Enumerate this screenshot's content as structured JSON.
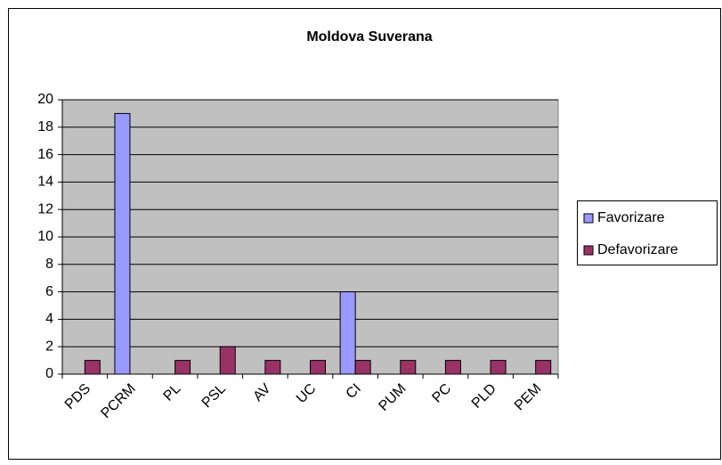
{
  "chart_data": {
    "type": "bar",
    "title": "Moldova Suverana",
    "categories": [
      "PDS",
      "PCRM",
      "PL",
      "PSL",
      "AV",
      "UC",
      "CI",
      "PUM",
      "PC",
      "PLD",
      "PEM"
    ],
    "series": [
      {
        "name": "Favorizare",
        "color": "#9999ff",
        "values": [
          0,
          19,
          0,
          0,
          0,
          0,
          6,
          0,
          0,
          0,
          0
        ]
      },
      {
        "name": "Defavorizare",
        "color": "#993366",
        "values": [
          1,
          0,
          1,
          2,
          1,
          1,
          1,
          1,
          1,
          1,
          1
        ]
      }
    ],
    "ylim": [
      0,
      20
    ],
    "yticks": [
      0,
      2,
      4,
      6,
      8,
      10,
      12,
      14,
      16,
      18,
      20
    ],
    "grid": true,
    "legend": "right"
  }
}
